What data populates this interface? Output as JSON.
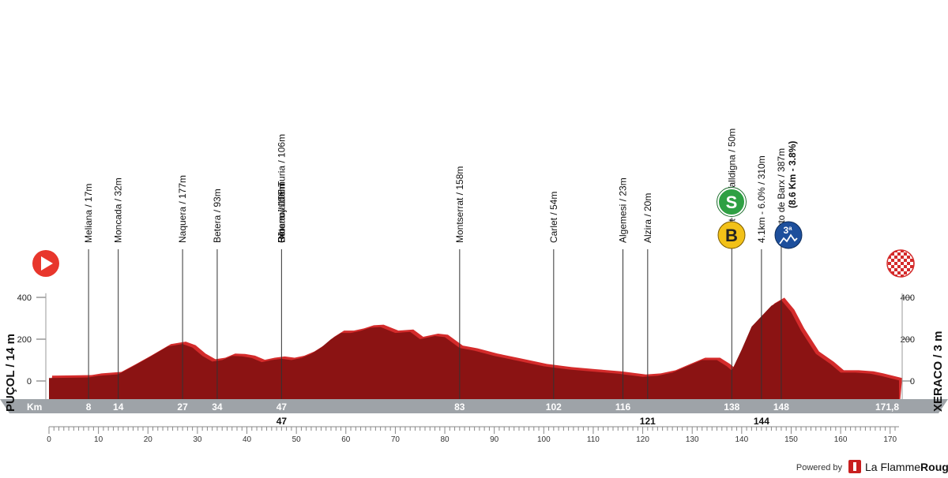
{
  "chart_data": {
    "type": "area",
    "title": "",
    "xlabel": "Km",
    "ylabel": "",
    "xlim": [
      0,
      171.8
    ],
    "ylim": [
      -150,
      420
    ],
    "y_ticks": [
      "0",
      "200",
      "400"
    ],
    "x_ticks": [
      "0",
      "10",
      "20",
      "30",
      "40",
      "50",
      "60",
      "70",
      "80",
      "90",
      "100",
      "110",
      "120",
      "130",
      "140",
      "150",
      "160",
      "170"
    ],
    "series": [
      {
        "x": [
          0,
          3,
          8,
          10,
          14,
          17,
          20,
          24,
          27,
          29,
          31,
          33,
          35,
          37,
          39,
          41,
          43,
          45,
          47,
          49,
          51,
          53,
          55,
          57,
          59,
          61,
          63,
          65,
          67,
          70,
          73,
          75,
          78,
          80,
          83,
          86,
          90,
          95,
          100,
          105,
          110,
          115,
          120,
          123,
          126,
          129,
          132,
          135,
          137,
          138,
          140,
          142,
          144,
          146,
          148,
          150,
          152,
          155,
          158,
          160,
          163,
          166,
          168,
          171.8
        ],
        "y": [
          14,
          15,
          17,
          25,
          32,
          70,
          110,
          165,
          177,
          160,
          120,
          93,
          100,
          120,
          118,
          110,
          90,
          100,
          106,
          100,
          110,
          130,
          160,
          200,
          230,
          230,
          240,
          255,
          258,
          230,
          235,
          200,
          215,
          210,
          158,
          145,
          120,
          95,
          70,
          55,
          45,
          35,
          20,
          25,
          40,
          70,
          100,
          100,
          70,
          50,
          150,
          260,
          310,
          360,
          387,
          330,
          240,
          130,
          80,
          40,
          40,
          35,
          25,
          3
        ]
      }
    ],
    "waypoints": [
      {
        "km": 8,
        "label": "Meliana / 17m"
      },
      {
        "km": 14,
        "label": "Moncada / 32m"
      },
      {
        "km": 27,
        "label": "Naquera / 177m"
      },
      {
        "km": 34,
        "label": "Betera / 93m"
      },
      {
        "km": 47,
        "label": "Olocau / 106m"
      },
      {
        "km": 47,
        "label": "Bétera / 106m"
      },
      {
        "km": 47,
        "label": "Ribarroja del Turia / 106m"
      },
      {
        "km": 83,
        "label": "Montserrat  / 158m"
      },
      {
        "km": 102,
        "label": "Carlet / 54m"
      },
      {
        "km": 116,
        "label": "Algemesi / 23m"
      },
      {
        "km": 121,
        "label": "Alzira / 20m"
      },
      {
        "km": 138,
        "label": "Simat de la Valldigna / 50m"
      },
      {
        "km": 144,
        "label": "4.1km - 6.0% / 310m"
      },
      {
        "km": 148,
        "label": "Puerto de Barx / 387m",
        "sublabel": "(8.6 Km - 3.8%)"
      }
    ],
    "km_markers_top": [
      "8",
      "14",
      "27",
      "34",
      "47",
      "83",
      "102",
      "116",
      "138",
      "148",
      "171,8"
    ],
    "km_markers_bottom": [
      "47",
      "121",
      "144"
    ],
    "markers": {
      "sprint": "S",
      "bonus": "B",
      "climb_category": "3ª"
    }
  },
  "start": {
    "label": "PUÇOL / 14 m"
  },
  "finish": {
    "label": "XERACO / 3 m"
  },
  "km_axis_label": "Km",
  "brand": {
    "powered": "Powered by",
    "name_part1": "La Flamme",
    "name_part2": "Rouge"
  },
  "colors": {
    "profile_fill": "#8b1313",
    "profile_edge": "#d42b2b",
    "bar": "#9ea3a8",
    "sprint": "#2ea043",
    "bonus": "#f2c118",
    "climb": "#1d4f9c",
    "start": "#e8362c"
  }
}
